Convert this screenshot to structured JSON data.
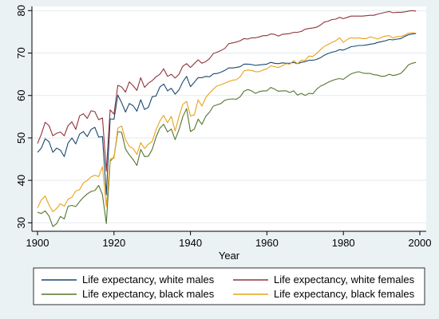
{
  "chart_data": {
    "type": "line",
    "xlabel": "Year",
    "ylabel": "",
    "xlim": [
      1900,
      2000
    ],
    "ylim": [
      28,
      81
    ],
    "xticks": [
      1900,
      1920,
      1940,
      1960,
      1980,
      2000
    ],
    "yticks": [
      30,
      40,
      50,
      60,
      70,
      80
    ],
    "grid": "horizontal",
    "legend_position": "bottom",
    "x": [
      1900,
      1901,
      1902,
      1903,
      1904,
      1905,
      1906,
      1907,
      1908,
      1909,
      1910,
      1911,
      1912,
      1913,
      1914,
      1915,
      1916,
      1917,
      1918,
      1919,
      1920,
      1921,
      1922,
      1923,
      1924,
      1925,
      1926,
      1927,
      1928,
      1929,
      1930,
      1931,
      1932,
      1933,
      1934,
      1935,
      1936,
      1937,
      1938,
      1939,
      1940,
      1941,
      1942,
      1943,
      1944,
      1945,
      1946,
      1947,
      1948,
      1949,
      1950,
      1951,
      1952,
      1953,
      1954,
      1955,
      1956,
      1957,
      1958,
      1959,
      1960,
      1961,
      1962,
      1963,
      1964,
      1965,
      1966,
      1967,
      1968,
      1969,
      1970,
      1971,
      1972,
      1973,
      1974,
      1975,
      1976,
      1977,
      1978,
      1979,
      1980,
      1981,
      1982,
      1983,
      1984,
      1985,
      1986,
      1987,
      1988,
      1989,
      1990,
      1991,
      1992,
      1993,
      1994,
      1995,
      1996,
      1997,
      1998,
      1999
    ],
    "series": [
      {
        "name": "Life expectancy, white males",
        "color": "#1a476f",
        "values": [
          46.6,
          47.6,
          49.8,
          49.1,
          46.6,
          47.6,
          47.1,
          45.6,
          48.8,
          50.0,
          48.6,
          50.9,
          51.5,
          50.3,
          52.0,
          52.5,
          50.2,
          50.3,
          36.6,
          54.5,
          54.4,
          60.1,
          58.3,
          56.1,
          58.1,
          57.6,
          56.3,
          59.0,
          56.7,
          57.2,
          59.7,
          59.9,
          62.0,
          62.7,
          61.1,
          61.7,
          60.3,
          61.3,
          63.2,
          64.5,
          62.1,
          63.1,
          64.2,
          64.2,
          64.5,
          64.4,
          65.1,
          65.2,
          65.5,
          65.9,
          66.5,
          66.5,
          66.6,
          66.8,
          67.4,
          67.4,
          67.3,
          67.1,
          67.2,
          67.3,
          67.4,
          67.8,
          67.6,
          67.5,
          67.7,
          67.6,
          67.6,
          67.8,
          67.5,
          67.8,
          68.0,
          68.3,
          68.3,
          68.5,
          68.9,
          69.5,
          69.9,
          70.2,
          70.4,
          70.8,
          70.7,
          71.1,
          71.5,
          71.6,
          71.8,
          71.8,
          71.9,
          72.1,
          72.2,
          72.5,
          72.7,
          72.9,
          73.2,
          73.1,
          73.3,
          73.4,
          73.9,
          74.3,
          74.5,
          74.6
        ]
      },
      {
        "name": "Life expectancy, white females",
        "color": "#90353b",
        "values": [
          48.7,
          50.9,
          53.7,
          52.9,
          50.5,
          51.1,
          51.4,
          50.5,
          52.9,
          53.8,
          52.0,
          55.2,
          55.7,
          54.6,
          56.4,
          56.2,
          54.3,
          54.7,
          42.2,
          56.6,
          55.6,
          62.4,
          62.0,
          60.8,
          63.2,
          62.3,
          61.2,
          64.2,
          61.9,
          62.9,
          63.5,
          64.4,
          65.0,
          66.3,
          64.5,
          65.0,
          64.1,
          65.0,
          66.9,
          67.5,
          66.6,
          67.5,
          68.4,
          67.6,
          68.0,
          68.7,
          69.9,
          70.2,
          70.6,
          71.1,
          72.2,
          72.4,
          72.6,
          72.9,
          73.4,
          73.3,
          73.6,
          73.6,
          73.8,
          74.1,
          74.1,
          74.5,
          74.4,
          74.0,
          74.4,
          74.5,
          74.6,
          74.9,
          74.9,
          75.1,
          75.6,
          75.8,
          75.9,
          76.1,
          76.6,
          77.3,
          77.5,
          77.9,
          78.0,
          78.4,
          78.1,
          78.4,
          78.7,
          78.7,
          78.7,
          78.7,
          78.8,
          78.9,
          78.9,
          79.2,
          79.4,
          79.6,
          79.8,
          79.5,
          79.6,
          79.6,
          79.7,
          79.9,
          80.0,
          79.9
        ]
      },
      {
        "name": "Life expectancy, black males",
        "color": "#55752f",
        "values": [
          32.5,
          32.2,
          32.8,
          31.6,
          29.1,
          29.8,
          31.5,
          30.9,
          33.9,
          34.1,
          33.8,
          35.0,
          36.0,
          36.8,
          37.4,
          37.6,
          38.8,
          36.6,
          29.8,
          44.5,
          45.5,
          51.5,
          51.3,
          47.4,
          46.0,
          44.9,
          43.5,
          47.3,
          45.6,
          45.7,
          47.3,
          50.2,
          52.3,
          53.2,
          51.4,
          52.1,
          49.6,
          51.9,
          55.0,
          56.9,
          51.5,
          52.1,
          54.4,
          53.2,
          55.1,
          56.1,
          57.5,
          57.8,
          58.1,
          58.9,
          59.1,
          59.2,
          59.1,
          59.7,
          61.0,
          61.4,
          61.1,
          60.5,
          60.9,
          61.1,
          61.1,
          61.9,
          61.5,
          61.0,
          61.1,
          61.1,
          60.7,
          61.1,
          60.1,
          60.5,
          60.0,
          60.5,
          60.4,
          61.5,
          62.2,
          62.6,
          63.1,
          63.5,
          63.8,
          64.0,
          63.8,
          64.5,
          65.1,
          65.4,
          65.6,
          65.3,
          65.2,
          65.2,
          64.9,
          64.8,
          64.5,
          64.6,
          65.0,
          64.7,
          64.9,
          65.2,
          66.1,
          67.2,
          67.6,
          67.8
        ]
      },
      {
        "name": "Life expectancy, black females",
        "color": "#e8a21a",
        "values": [
          33.5,
          35.4,
          36.3,
          34.2,
          32.6,
          33.4,
          34.5,
          33.9,
          35.6,
          36.0,
          37.5,
          37.8,
          39.4,
          40.0,
          40.8,
          41.2,
          40.9,
          43.2,
          33.8,
          45.1,
          45.2,
          52.3,
          52.8,
          49.6,
          48.0,
          47.5,
          46.1,
          48.9,
          47.5,
          48.5,
          49.2,
          51.9,
          54.0,
          55.3,
          53.6,
          55.1,
          51.6,
          55.0,
          57.9,
          58.6,
          55.2,
          55.4,
          59.0,
          57.5,
          59.5,
          60.6,
          61.5,
          62.3,
          62.5,
          62.9,
          63.3,
          63.6,
          63.7,
          64.4,
          65.8,
          66.0,
          65.9,
          65.6,
          65.6,
          66.0,
          66.3,
          67.0,
          66.8,
          66.6,
          67.0,
          67.5,
          67.4,
          68.2,
          67.5,
          68.3,
          68.3,
          69.3,
          69.2,
          69.9,
          70.8,
          71.6,
          72.0,
          72.5,
          72.9,
          73.6,
          72.5,
          73.2,
          73.6,
          73.5,
          73.6,
          73.4,
          73.4,
          73.8,
          73.6,
          73.3,
          73.7,
          74.0,
          74.1,
          73.5,
          73.9,
          73.9,
          74.2,
          74.7,
          74.8,
          74.7
        ]
      }
    ]
  }
}
